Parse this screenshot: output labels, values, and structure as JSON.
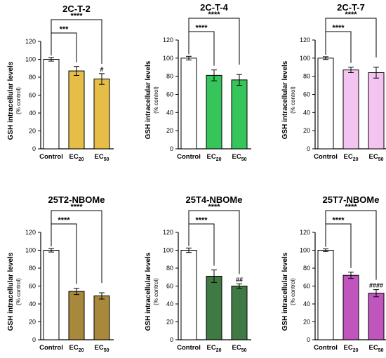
{
  "chart_data": [
    {
      "type": "bar",
      "title": "2C-T-2",
      "ylabel": "GSH intracellular levels",
      "ylabel_sub": "(% control)",
      "ylim": [
        0,
        120
      ],
      "yticks": [
        0,
        20,
        40,
        60,
        80,
        100,
        120
      ],
      "categories": [
        {
          "main": "Control",
          "sub": ""
        },
        {
          "main": "EC",
          "sub": "20"
        },
        {
          "main": "EC",
          "sub": "50"
        }
      ],
      "values": [
        100,
        87,
        78
      ],
      "errors": [
        2,
        5,
        6
      ],
      "colors": [
        "#ffffff",
        "#e5bd47",
        "#e5bd47"
      ],
      "significance": [
        {
          "from": 0,
          "to": 1,
          "label": "***"
        },
        {
          "from": 0,
          "to": 2,
          "label": "****"
        }
      ],
      "bar_marks": [
        "",
        "",
        "#"
      ]
    },
    {
      "type": "bar",
      "title": "2C-T-4",
      "ylabel": "GSH intracellular levels",
      "ylabel_sub": "(% control)",
      "ylim": [
        0,
        120
      ],
      "yticks": [
        0,
        20,
        40,
        60,
        80,
        100,
        120
      ],
      "categories": [
        {
          "main": "Control",
          "sub": ""
        },
        {
          "main": "EC",
          "sub": "20"
        },
        {
          "main": "EC",
          "sub": "50"
        }
      ],
      "values": [
        100,
        81,
        76
      ],
      "errors": [
        2,
        6,
        6
      ],
      "colors": [
        "#ffffff",
        "#35c55b",
        "#35c55b"
      ],
      "significance": [
        {
          "from": 0,
          "to": 1,
          "label": "****"
        },
        {
          "from": 0,
          "to": 2,
          "label": "****"
        }
      ],
      "bar_marks": [
        "",
        "",
        ""
      ]
    },
    {
      "type": "bar",
      "title": "2C-T-7",
      "ylabel": "GSH intracellular levels",
      "ylabel_sub": "(% control)",
      "ylim": [
        0,
        120
      ],
      "yticks": [
        0,
        20,
        40,
        60,
        80,
        100,
        120
      ],
      "categories": [
        {
          "main": "Control",
          "sub": ""
        },
        {
          "main": "EC",
          "sub": "20"
        },
        {
          "main": "EC",
          "sub": "50"
        }
      ],
      "values": [
        100,
        87,
        84
      ],
      "errors": [
        1.5,
        3,
        6
      ],
      "colors": [
        "#ffffff",
        "#f4c4f0",
        "#f4c4f0"
      ],
      "significance": [
        {
          "from": 0,
          "to": 1,
          "label": "****"
        },
        {
          "from": 0,
          "to": 2,
          "label": "****"
        }
      ],
      "bar_marks": [
        "",
        "",
        ""
      ]
    },
    {
      "type": "bar",
      "title": "25T2-NBOMe",
      "ylabel": "GSH intracellular levels",
      "ylabel_sub": "(% control)",
      "ylim": [
        0,
        120
      ],
      "yticks": [
        0,
        20,
        40,
        60,
        80,
        100,
        120
      ],
      "categories": [
        {
          "main": "Control",
          "sub": ""
        },
        {
          "main": "EC",
          "sub": "20"
        },
        {
          "main": "EC",
          "sub": "50"
        }
      ],
      "values": [
        100,
        54,
        49
      ],
      "errors": [
        2,
        3.5,
        3.5
      ],
      "colors": [
        "#ffffff",
        "#a8893b",
        "#a8893b"
      ],
      "significance": [
        {
          "from": 0,
          "to": 1,
          "label": "****"
        },
        {
          "from": 0,
          "to": 2,
          "label": "****"
        }
      ],
      "bar_marks": [
        "",
        "",
        ""
      ]
    },
    {
      "type": "bar",
      "title": "25T4-NBOMe",
      "ylabel": "GSH intracellular levels",
      "ylabel_sub": "(% control)",
      "ylim": [
        0,
        120
      ],
      "yticks": [
        0,
        20,
        40,
        60,
        80,
        100,
        120
      ],
      "categories": [
        {
          "main": "Control",
          "sub": ""
        },
        {
          "main": "EC",
          "sub": "20"
        },
        {
          "main": "EC",
          "sub": "50"
        }
      ],
      "values": [
        100,
        71,
        60
      ],
      "errors": [
        2.5,
        7,
        2.5
      ],
      "colors": [
        "#ffffff",
        "#3f7a45",
        "#3f7a45"
      ],
      "significance": [
        {
          "from": 0,
          "to": 1,
          "label": "****"
        },
        {
          "from": 0,
          "to": 2,
          "label": "****"
        }
      ],
      "bar_marks": [
        "",
        "",
        "##"
      ]
    },
    {
      "type": "bar",
      "title": "25T7-NBOMe",
      "ylabel": "GSH intracellular levels",
      "ylabel_sub": "(% control)",
      "ylim": [
        0,
        120
      ],
      "yticks": [
        0,
        20,
        40,
        60,
        80,
        100,
        120
      ],
      "categories": [
        {
          "main": "Control",
          "sub": ""
        },
        {
          "main": "EC",
          "sub": "20"
        },
        {
          "main": "EC",
          "sub": "50"
        }
      ],
      "values": [
        100,
        72,
        52
      ],
      "errors": [
        1.5,
        3.5,
        4
      ],
      "colors": [
        "#ffffff",
        "#bf55bd",
        "#bf55bd"
      ],
      "significance": [
        {
          "from": 0,
          "to": 1,
          "label": "****"
        },
        {
          "from": 0,
          "to": 2,
          "label": "****"
        }
      ],
      "bar_marks": [
        "",
        "",
        "####"
      ]
    }
  ]
}
